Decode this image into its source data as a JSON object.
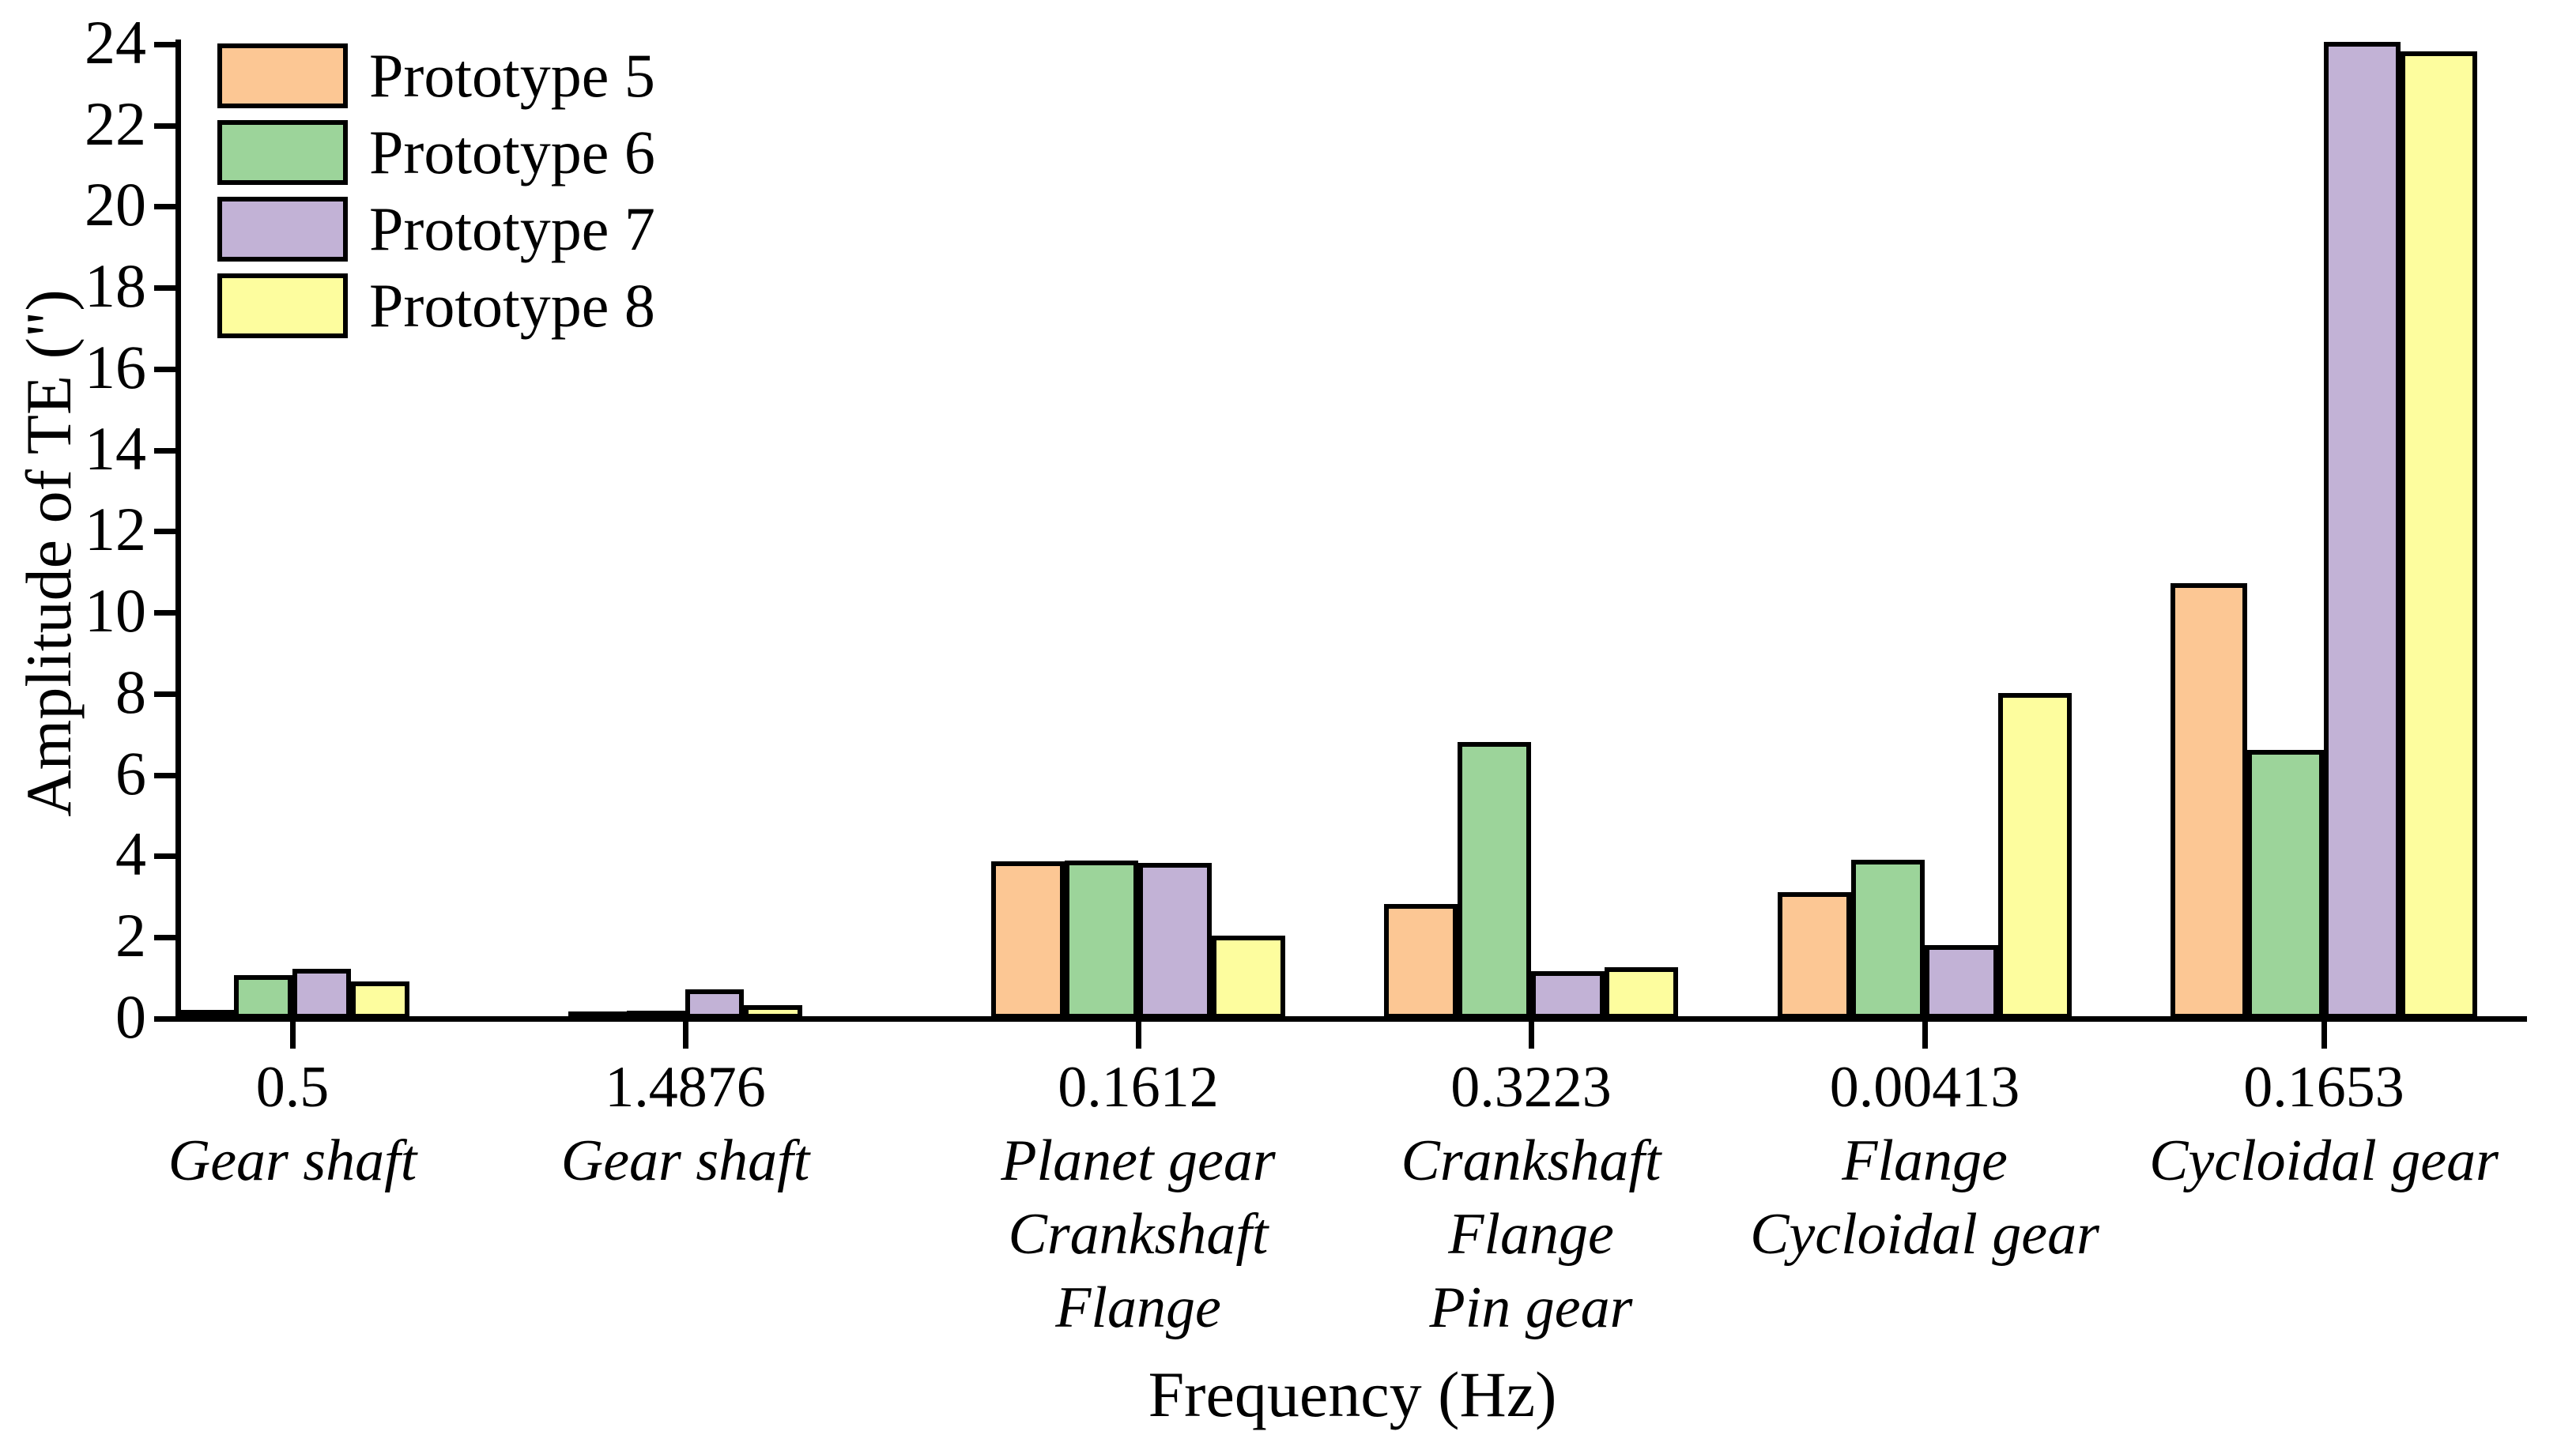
{
  "figure": {
    "x_axis_label": "Frequency (Hz)",
    "y_axis_label": "Amplitude of TE (\")"
  },
  "legend": {
    "position": "upper-left",
    "items": [
      {
        "label": "Prototype 5",
        "color": "#FCC794"
      },
      {
        "label": "Prototype 6",
        "color": "#9CD49A"
      },
      {
        "label": "Prototype 7",
        "color": "#C2B2D6"
      },
      {
        "label": "Prototype 8",
        "color": "#FDFD9E"
      }
    ]
  },
  "chart_data": {
    "type": "bar",
    "title": "",
    "xlabel": "Frequency (Hz)",
    "ylabel": "Amplitude of TE (\")",
    "ylim": [
      0,
      24
    ],
    "ytick_step": 2,
    "ytick_labels": [
      "0",
      "2",
      "4",
      "6",
      "8",
      "10",
      "12",
      "14",
      "16",
      "18",
      "20",
      "22",
      "24"
    ],
    "grid": false,
    "legend_position": "upper-left",
    "categories": [
      {
        "frequency": "0.5",
        "components": [
          "Gear shaft"
        ]
      },
      {
        "frequency": "1.4876",
        "components": [
          "Gear shaft"
        ]
      },
      {
        "frequency": "0.1612",
        "components": [
          "Planet gear",
          "Crankshaft",
          "Flange"
        ]
      },
      {
        "frequency": "0.3223",
        "components": [
          "Crankshaft",
          "Flange",
          "Pin gear"
        ]
      },
      {
        "frequency": "0.00413",
        "components": [
          "Flange",
          "Cycloidal gear"
        ]
      },
      {
        "frequency": "0.1653",
        "components": [
          "Cycloidal gear"
        ]
      }
    ],
    "series": [
      {
        "name": "Prototype 5",
        "color": "#FCC794",
        "values": [
          0.1,
          0.05,
          3.75,
          2.7,
          3.0,
          10.6
        ]
      },
      {
        "name": "Prototype 6",
        "color": "#9CD49A",
        "values": [
          0.95,
          0.08,
          3.78,
          6.7,
          3.8,
          6.5
        ]
      },
      {
        "name": "Prototype 7",
        "color": "#C2B2D6",
        "values": [
          1.1,
          0.6,
          3.72,
          1.05,
          1.7,
          23.95
        ]
      },
      {
        "name": "Prototype 8",
        "color": "#FDFD9E",
        "values": [
          0.8,
          0.22,
          1.92,
          1.15,
          7.9,
          23.7
        ]
      }
    ]
  }
}
